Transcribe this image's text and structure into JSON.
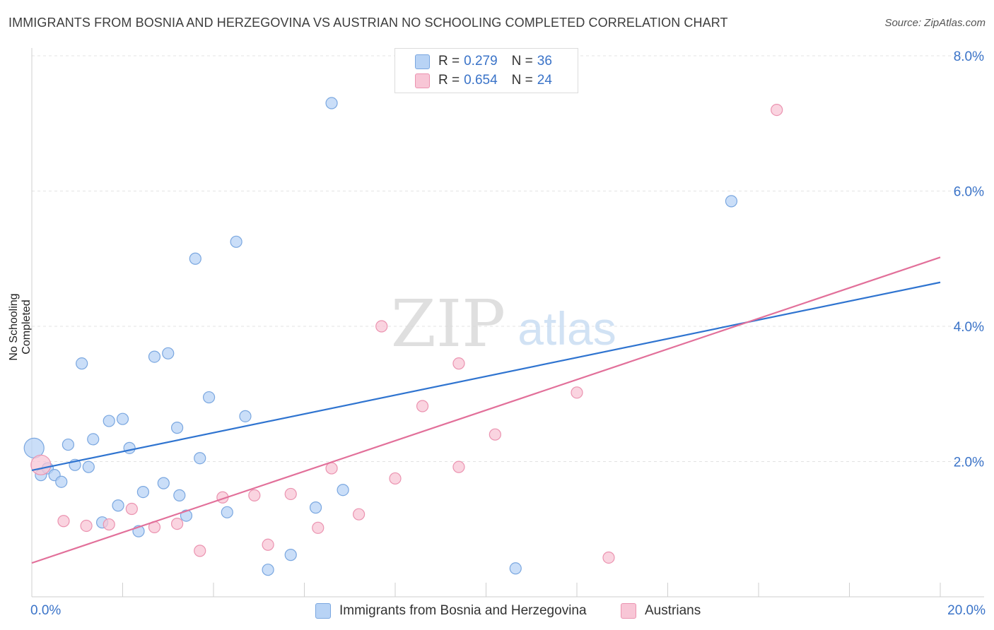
{
  "header": {
    "title": "IMMIGRANTS FROM BOSNIA AND HERZEGOVINA VS AUSTRIAN NO SCHOOLING COMPLETED CORRELATION CHART",
    "source": "Source: ZipAtlas.com"
  },
  "legend": {
    "rows": [
      {
        "r_label": "R =",
        "r_value": "0.279",
        "n_label": "N =",
        "n_value": "36"
      },
      {
        "r_label": "R =",
        "r_value": "0.654",
        "n_label": "N =",
        "n_value": "24"
      }
    ]
  },
  "bottom_legend": {
    "series1": "Immigrants from Bosnia and Herzegovina",
    "series2": "Austrians"
  },
  "watermark": {
    "zip": "ZIP",
    "atlas": "atlas"
  },
  "colors": {
    "blue_fill": "#b8d3f5",
    "blue_stroke": "#7aa7e0",
    "blue_line": "#2f74d0",
    "pink_fill": "#f8c6d6",
    "pink_stroke": "#eb93b0",
    "pink_line": "#e2709a",
    "tick_label": "#3a73c8"
  },
  "chart_data": {
    "type": "scatter",
    "title": "IMMIGRANTS FROM BOSNIA AND HERZEGOVINA VS AUSTRIAN NO SCHOOLING COMPLETED CORRELATION CHART",
    "xlabel": "",
    "ylabel": "No Schooling Completed",
    "xlim": [
      0,
      20
    ],
    "ylim": [
      0,
      8.2
    ],
    "x_tick_labels": [
      "0.0%",
      "20.0%"
    ],
    "y_ticks": [
      2,
      4,
      6,
      8
    ],
    "y_tick_labels": [
      "2.0%",
      "4.0%",
      "6.0%",
      "8.0%"
    ],
    "grid": true,
    "legend_position": "top-center",
    "series": [
      {
        "name": "Immigrants from Bosnia and Herzegovina",
        "color": "#b8d3f5",
        "points": [
          [
            0.05,
            2.2
          ],
          [
            0.2,
            1.8
          ],
          [
            0.35,
            1.9
          ],
          [
            0.5,
            1.8
          ],
          [
            0.65,
            1.7
          ],
          [
            0.8,
            2.25
          ],
          [
            0.95,
            1.95
          ],
          [
            1.1,
            3.45
          ],
          [
            1.25,
            1.92
          ],
          [
            1.35,
            2.33
          ],
          [
            1.55,
            1.1
          ],
          [
            1.7,
            2.6
          ],
          [
            1.9,
            1.35
          ],
          [
            2.0,
            2.63
          ],
          [
            2.15,
            2.2
          ],
          [
            2.35,
            0.97
          ],
          [
            2.45,
            1.55
          ],
          [
            2.7,
            3.55
          ],
          [
            2.9,
            1.68
          ],
          [
            3.0,
            3.6
          ],
          [
            3.2,
            2.5
          ],
          [
            3.25,
            1.5
          ],
          [
            3.4,
            1.2
          ],
          [
            3.6,
            5.0
          ],
          [
            3.7,
            2.05
          ],
          [
            3.9,
            2.95
          ],
          [
            4.3,
            1.25
          ],
          [
            4.5,
            5.25
          ],
          [
            4.7,
            2.67
          ],
          [
            5.2,
            0.4
          ],
          [
            5.7,
            0.62
          ],
          [
            6.25,
            1.32
          ],
          [
            6.6,
            7.3
          ],
          [
            6.85,
            1.58
          ],
          [
            10.65,
            0.42
          ],
          [
            15.4,
            5.85
          ]
        ],
        "trend": {
          "x": [
            0,
            20
          ],
          "y": [
            1.87,
            4.65
          ]
        }
      },
      {
        "name": "Austrians",
        "color": "#f8c6d6",
        "points": [
          [
            0.2,
            1.95
          ],
          [
            0.7,
            1.12
          ],
          [
            1.2,
            1.05
          ],
          [
            1.7,
            1.07
          ],
          [
            2.2,
            1.3
          ],
          [
            2.7,
            1.03
          ],
          [
            3.2,
            1.08
          ],
          [
            3.7,
            0.68
          ],
          [
            4.2,
            1.47
          ],
          [
            4.9,
            1.5
          ],
          [
            5.2,
            0.77
          ],
          [
            5.7,
            1.52
          ],
          [
            6.3,
            1.02
          ],
          [
            6.6,
            1.9
          ],
          [
            7.2,
            1.22
          ],
          [
            7.7,
            4.0
          ],
          [
            8.0,
            1.75
          ],
          [
            8.6,
            2.82
          ],
          [
            9.4,
            3.45
          ],
          [
            9.4,
            1.92
          ],
          [
            10.2,
            2.4
          ],
          [
            12.0,
            3.02
          ],
          [
            12.7,
            0.58
          ],
          [
            16.4,
            7.2
          ]
        ],
        "trend": {
          "x": [
            0,
            20
          ],
          "y": [
            0.5,
            5.02
          ]
        }
      }
    ]
  }
}
